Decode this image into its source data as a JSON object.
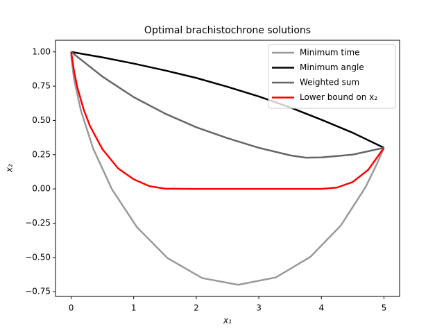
{
  "chart_data": {
    "type": "line",
    "title": "Optimal brachistochrone solutions",
    "xlabel": "x₁",
    "ylabel": "x₂",
    "xlim": [
      -0.25,
      5.25
    ],
    "ylim": [
      -0.785,
      1.085
    ],
    "xticks": [
      0,
      1,
      2,
      3,
      4,
      5
    ],
    "yticks": [
      {
        "value": -0.75,
        "label": "−0.75"
      },
      {
        "value": -0.5,
        "label": "−0.50"
      },
      {
        "value": -0.25,
        "label": "−0.25"
      },
      {
        "value": 0,
        "label": "0.00"
      },
      {
        "value": 0.25,
        "label": "0.25"
      },
      {
        "value": 0.5,
        "label": "0.50"
      },
      {
        "value": 0.75,
        "label": "0.75"
      },
      {
        "value": 1,
        "label": "1.00"
      }
    ],
    "legend": "upper right",
    "series": [
      {
        "name": "Minimum time",
        "color": "#999999",
        "x": [
          0,
          0.006,
          0.047,
          0.155,
          0.352,
          0.651,
          1.051,
          1.54,
          2.095,
          2.67,
          3.273,
          3.826,
          4.311,
          4.706,
          4.887,
          5
        ],
        "values": [
          1,
          0.948,
          0.8,
          0.573,
          0.2945,
          -0.0015,
          -0.279,
          -0.505,
          -0.651,
          -0.7,
          -0.646,
          -0.4955,
          -0.2668,
          0.0129,
          0.182,
          0.3
        ]
      },
      {
        "name": "Minimum angle",
        "color": "#000000",
        "x": [
          0,
          0.5,
          1,
          1.5,
          2,
          2.5,
          3,
          3.5,
          4,
          4.5,
          5
        ],
        "values": [
          1,
          0.96,
          0.915,
          0.865,
          0.81,
          0.745,
          0.675,
          0.595,
          0.505,
          0.41,
          0.3
        ]
      },
      {
        "name": "Weighted sum",
        "color": "#666666",
        "x": [
          0,
          0.5,
          1,
          1.5,
          2,
          2.5,
          3,
          3.5,
          3.75,
          4,
          4.5,
          5
        ],
        "values": [
          1,
          0.82,
          0.67,
          0.55,
          0.45,
          0.37,
          0.3,
          0.245,
          0.228,
          0.23,
          0.25,
          0.3
        ]
      },
      {
        "name": "Lower bound on x₂",
        "color": "#ff0000",
        "x": [
          0,
          0.05,
          0.1,
          0.2,
          0.3,
          0.5,
          0.75,
          1,
          1.25,
          1.5,
          2,
          3,
          4,
          4.25,
          4.5,
          4.75,
          5
        ],
        "values": [
          1,
          0.85,
          0.74,
          0.58,
          0.46,
          0.29,
          0.15,
          0.07,
          0.02,
          0.002,
          0,
          0,
          0,
          0.01,
          0.05,
          0.14,
          0.3
        ]
      }
    ]
  }
}
